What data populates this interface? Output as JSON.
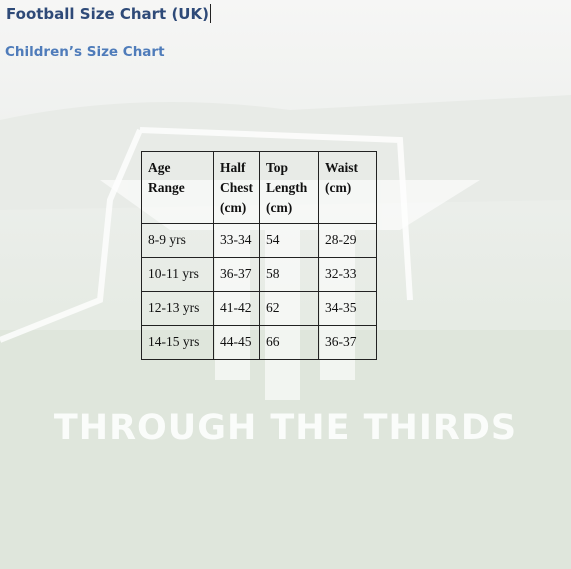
{
  "header": {
    "title": "Football Size Chart (UK)",
    "subtitle": "Children’s Size Chart"
  },
  "table": {
    "columns": [
      "Age Range",
      "Half Chest (cm)",
      "Top Length (cm)",
      "Waist (cm)"
    ],
    "rows": [
      [
        "8-9 yrs",
        "33-34",
        "54",
        "28-29"
      ],
      [
        "10-11 yrs",
        "36-37",
        "58",
        "32-33"
      ],
      [
        "12-13 yrs",
        "41-42",
        "62",
        "34-35"
      ],
      [
        "14-15 yrs",
        "44-45",
        "66",
        "36-37"
      ]
    ]
  },
  "watermark": "THROUGH THE THIRDS"
}
